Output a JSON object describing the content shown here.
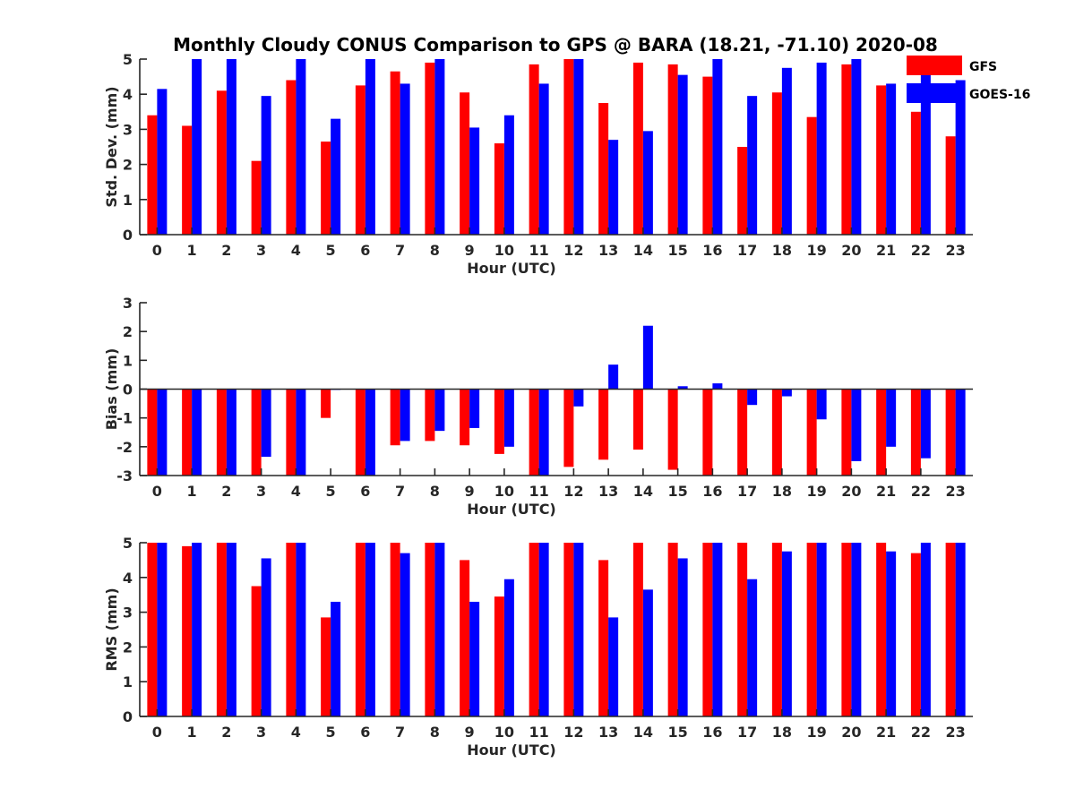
{
  "chart_data": {
    "title": "Monthly Cloudy CONUS Comparison to GPS @ BARA (18.21, -71.10) 2020-08",
    "type": "bar",
    "colors": {
      "GFS": "#ff0000",
      "GOES-16": "#0000ff"
    },
    "legend": {
      "position": "top-right",
      "entries": [
        "GFS",
        "GOES-16"
      ]
    },
    "panels": [
      {
        "id": "std",
        "type": "bar",
        "xlabel": "Hour (UTC)",
        "ylabel": "Std. Dev. (mm)",
        "ylim": [
          0,
          5
        ],
        "yticks": [
          0,
          1,
          2,
          3,
          4,
          5
        ],
        "categories": [
          "0",
          "1",
          "2",
          "3",
          "4",
          "5",
          "6",
          "7",
          "8",
          "9",
          "10",
          "11",
          "12",
          "13",
          "14",
          "15",
          "16",
          "17",
          "18",
          "19",
          "20",
          "21",
          "22",
          "23"
        ],
        "series": [
          {
            "name": "GFS",
            "values": [
              3.4,
              3.1,
              4.1,
              2.1,
              4.4,
              2.65,
              4.25,
              4.65,
              4.9,
              4.05,
              2.6,
              4.85,
              5.0,
              3.75,
              4.9,
              4.85,
              4.5,
              2.5,
              4.05,
              3.35,
              4.85,
              4.25,
              3.5,
              2.8
            ]
          },
          {
            "name": "GOES-16",
            "values": [
              4.15,
              5.0,
              5.0,
              3.95,
              5.0,
              3.3,
              5.0,
              4.3,
              5.0,
              3.05,
              3.4,
              4.3,
              5.0,
              2.7,
              2.95,
              4.55,
              5.0,
              3.95,
              4.75,
              4.9,
              5.0,
              4.3,
              5.0,
              4.4
            ]
          }
        ]
      },
      {
        "id": "bias",
        "type": "bar",
        "xlabel": "Hour (UTC)",
        "ylabel": "Bias (mm)",
        "ylim": [
          -3,
          3
        ],
        "yticks": [
          -3,
          -2,
          -1,
          0,
          1,
          2,
          3
        ],
        "categories": [
          "0",
          "1",
          "2",
          "3",
          "4",
          "5",
          "6",
          "7",
          "8",
          "9",
          "10",
          "11",
          "12",
          "13",
          "14",
          "15",
          "16",
          "17",
          "18",
          "19",
          "20",
          "21",
          "22",
          "23"
        ],
        "series": [
          {
            "name": "GFS",
            "values": [
              -3,
              -3,
              -3,
              -3,
              -3,
              -1.0,
              -3,
              -1.95,
              -1.8,
              -1.95,
              -2.25,
              -3,
              -2.7,
              -2.45,
              -2.1,
              -2.8,
              -3,
              -3,
              -3,
              -3,
              -3,
              -3,
              -3,
              -3
            ]
          },
          {
            "name": "GOES-16",
            "values": [
              -3,
              -3,
              -3,
              -2.35,
              -3,
              -0.02,
              -3,
              -1.8,
              -1.45,
              -1.35,
              -2.0,
              -3,
              -0.6,
              0.85,
              2.2,
              0.1,
              0.2,
              -0.55,
              -0.25,
              -1.05,
              -2.5,
              -2.0,
              -2.4,
              -3
            ]
          }
        ]
      },
      {
        "id": "rms",
        "type": "bar",
        "xlabel": "Hour (UTC)",
        "ylabel": "RMS (mm)",
        "ylim": [
          0,
          5
        ],
        "yticks": [
          0,
          1,
          2,
          3,
          4,
          5
        ],
        "categories": [
          "0",
          "1",
          "2",
          "3",
          "4",
          "5",
          "6",
          "7",
          "8",
          "9",
          "10",
          "11",
          "12",
          "13",
          "14",
          "15",
          "16",
          "17",
          "18",
          "19",
          "20",
          "21",
          "22",
          "23"
        ],
        "series": [
          {
            "name": "GFS",
            "values": [
              5.0,
              4.9,
              5.0,
              3.75,
              5.0,
              2.85,
              5.0,
              5.0,
              5.0,
              4.5,
              3.45,
              5.0,
              5.0,
              4.5,
              5.0,
              5.0,
              5.0,
              5.0,
              5.0,
              5.0,
              5.0,
              5.0,
              4.7,
              5.0
            ]
          },
          {
            "name": "GOES-16",
            "values": [
              5.0,
              5.0,
              5.0,
              4.55,
              5.0,
              3.3,
              5.0,
              4.7,
              5.0,
              3.3,
              3.95,
              5.0,
              5.0,
              2.85,
              3.65,
              4.55,
              5.0,
              3.95,
              4.75,
              5.0,
              5.0,
              4.75,
              5.0,
              5.0
            ]
          }
        ]
      }
    ]
  }
}
